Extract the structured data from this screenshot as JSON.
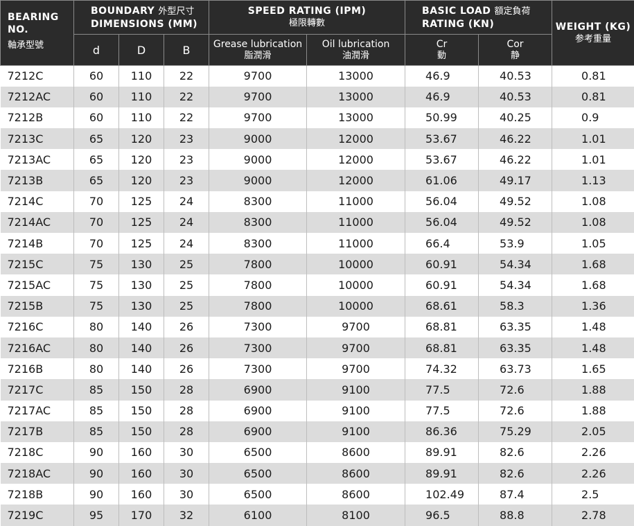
{
  "header": {
    "bearing_no_line1": "BEARING",
    "bearing_no_line2": "NO.",
    "bearing_no_cn": "軸承型號",
    "boundary_en1": "BOUNDARY",
    "boundary_cn": "外型尺寸",
    "boundary_en2": "DIMENSIONS (MM)",
    "speed_en": "SPEED RATING (IPM)",
    "speed_cn": "極限轉數",
    "load_en1": "BASIC LOAD",
    "load_cn": "額定負荷",
    "load_en2": "RATING (KN)",
    "weight_en": "WEIGHT (KG)",
    "weight_cn": "参考重量",
    "sub_d": "d",
    "sub_D": "D",
    "sub_B": "B",
    "grease_en": "Grease lubrication",
    "grease_cn": "脂潤滑",
    "oil_en": "Oil lubrication",
    "oil_cn": "油潤滑",
    "cr_en": "Cr",
    "cr_cn": "動",
    "cor_en": "Cor",
    "cor_cn": "静"
  },
  "rows": [
    [
      "7212C",
      "60",
      "110",
      "22",
      "9700",
      "13000",
      "46.9",
      "40.53",
      "0.81"
    ],
    [
      "7212AC",
      "60",
      "110",
      "22",
      "9700",
      "13000",
      "46.9",
      "40.53",
      "0.81"
    ],
    [
      "7212B",
      "60",
      "110",
      "22",
      "9700",
      "13000",
      "50.99",
      "40.25",
      "0.9"
    ],
    [
      "7213C",
      "65",
      "120",
      "23",
      "9000",
      "12000",
      "53.67",
      "46.22",
      "1.01"
    ],
    [
      "7213AC",
      "65",
      "120",
      "23",
      "9000",
      "12000",
      "53.67",
      "46.22",
      "1.01"
    ],
    [
      "7213B",
      "65",
      "120",
      "23",
      "9000",
      "12000",
      "61.06",
      "49.17",
      "1.13"
    ],
    [
      "7214C",
      "70",
      "125",
      "24",
      "8300",
      "11000",
      "56.04",
      "49.52",
      "1.08"
    ],
    [
      "7214AC",
      "70",
      "125",
      "24",
      "8300",
      "11000",
      "56.04",
      "49.52",
      "1.08"
    ],
    [
      "7214B",
      "70",
      "125",
      "24",
      "8300",
      "11000",
      "66.4",
      "53.9",
      "1.05"
    ],
    [
      "7215C",
      "75",
      "130",
      "25",
      "7800",
      "10000",
      "60.91",
      "54.34",
      "1.68"
    ],
    [
      "7215AC",
      "75",
      "130",
      "25",
      "7800",
      "10000",
      "60.91",
      "54.34",
      "1.68"
    ],
    [
      "7215B",
      "75",
      "130",
      "25",
      "7800",
      "10000",
      "68.61",
      "58.3",
      "1.36"
    ],
    [
      "7216C",
      "80",
      "140",
      "26",
      "7300",
      "9700",
      "68.81",
      "63.35",
      "1.48"
    ],
    [
      "7216AC",
      "80",
      "140",
      "26",
      "7300",
      "9700",
      "68.81",
      "63.35",
      "1.48"
    ],
    [
      "7216B",
      "80",
      "140",
      "26",
      "7300",
      "9700",
      "74.32",
      "63.73",
      "1.65"
    ],
    [
      "7217C",
      "85",
      "150",
      "28",
      "6900",
      "9100",
      "77.5",
      "72.6",
      "1.88"
    ],
    [
      "7217AC",
      "85",
      "150",
      "28",
      "6900",
      "9100",
      "77.5",
      "72.6",
      "1.88"
    ],
    [
      "7217B",
      "85",
      "150",
      "28",
      "6900",
      "9100",
      "86.36",
      "75.29",
      "2.05"
    ],
    [
      "7218C",
      "90",
      "160",
      "30",
      "6500",
      "8600",
      "89.91",
      "82.6",
      "2.26"
    ],
    [
      "7218AC",
      "90",
      "160",
      "30",
      "6500",
      "8600",
      "89.91",
      "82.6",
      "2.26"
    ],
    [
      "7218B",
      "90",
      "160",
      "30",
      "6500",
      "8600",
      "102.49",
      "87.4",
      "2.5"
    ],
    [
      "7219C",
      "95",
      "170",
      "32",
      "6100",
      "8100",
      "96.5",
      "88.8",
      "2.78"
    ]
  ]
}
